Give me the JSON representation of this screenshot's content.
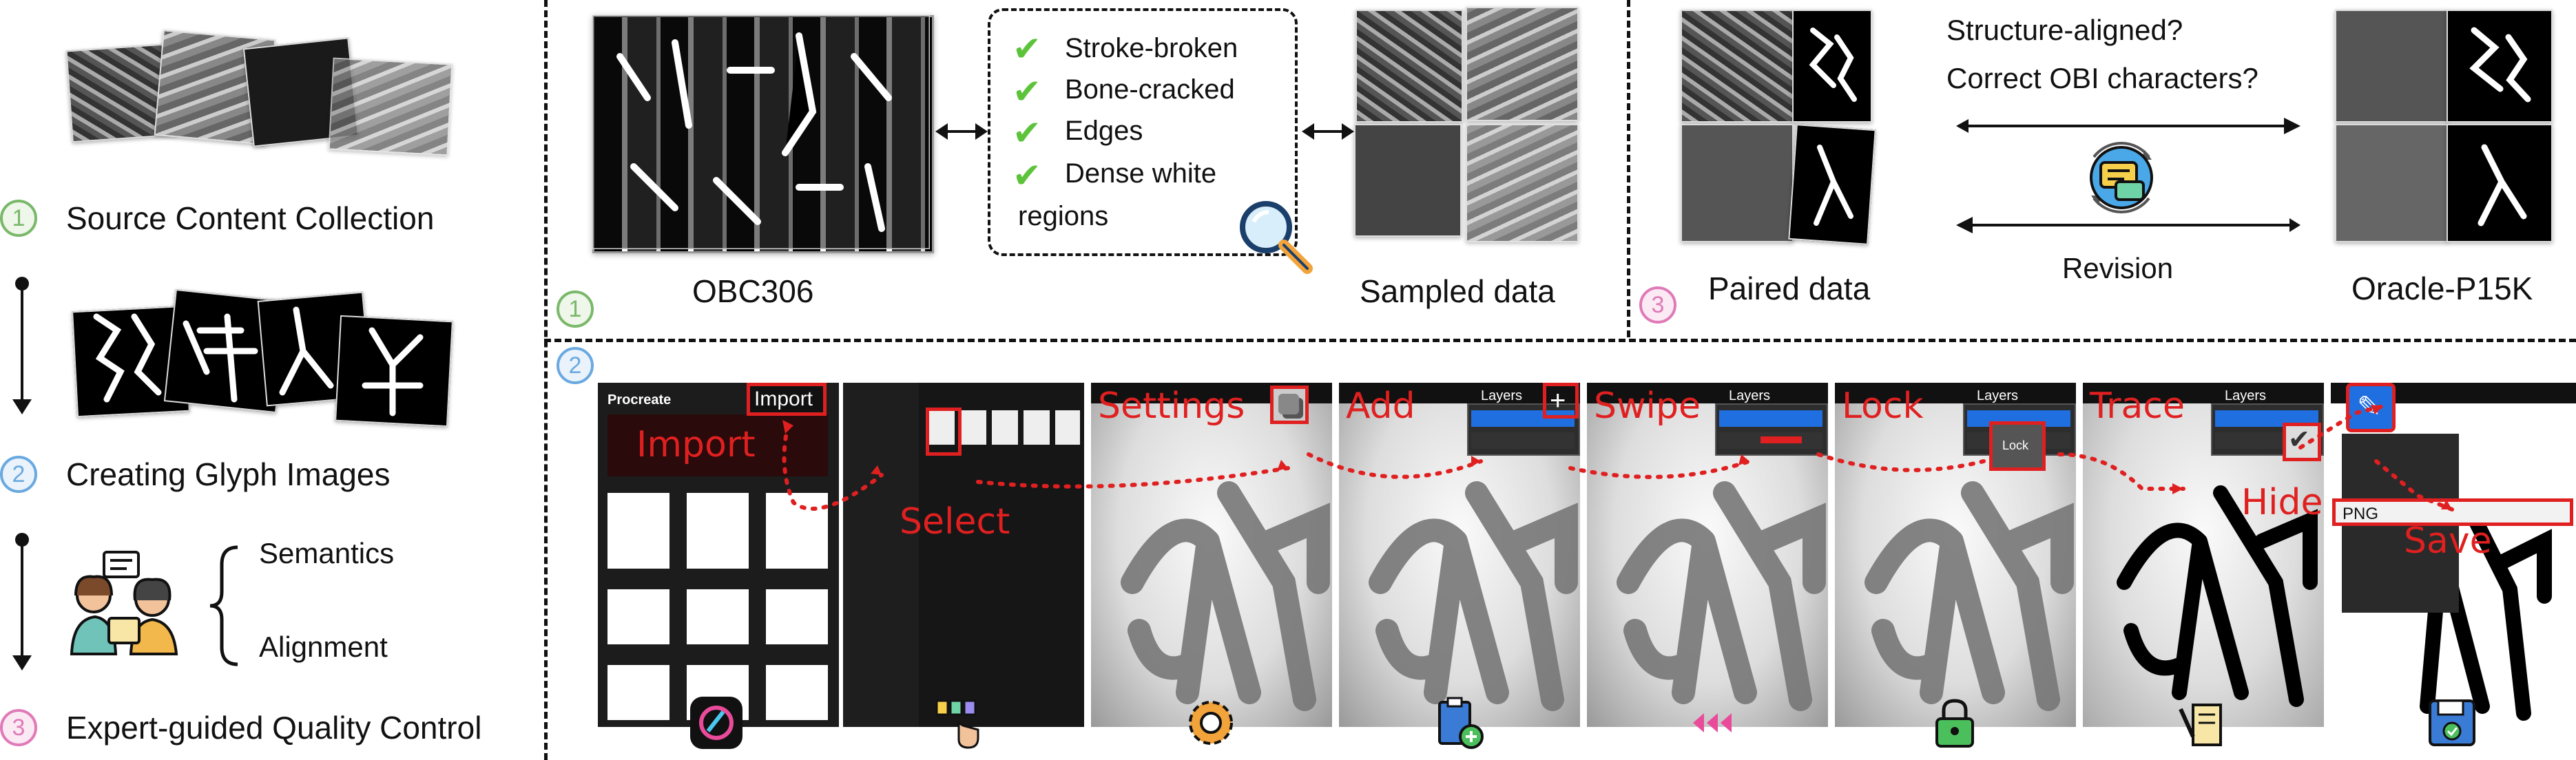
{
  "left_column": {
    "step1": {
      "num": "1",
      "label": "Source Content Collection"
    },
    "step2": {
      "num": "2",
      "label": "Creating Glyph Images"
    },
    "step3": {
      "num": "3",
      "label": "Expert-guided Quality Control"
    },
    "semantics": "Semantics",
    "alignment": "Alignment"
  },
  "stage1": {
    "num": "1",
    "source_caption": "OBC306",
    "criteria": [
      "Stroke-broken",
      "Bone-cracked",
      "Edges",
      "Dense white",
      "regions"
    ],
    "sampled_caption": "Sampled data"
  },
  "stage3": {
    "num": "3",
    "paired_caption": "Paired data",
    "question1": "Structure-aligned?",
    "question2": "Correct OBI characters?",
    "revision": "Revision",
    "result_caption": "Oracle-P15K"
  },
  "stage2": {
    "num": "2",
    "app_name": "Procreate",
    "steps": [
      "Import",
      "Select",
      "Settings",
      "Add",
      "Swipe",
      "Lock",
      "Trace",
      "Hide",
      "Save"
    ],
    "import_button": "Import",
    "layers_title": "Layers",
    "lock_button": "Lock",
    "export_format": "PNG"
  },
  "colors": {
    "accent_red": "#e02020",
    "green_check": "#5cc33a",
    "step1": "#7ab86a",
    "step2": "#6aa9e0",
    "step3": "#e07ab8"
  },
  "icons": [
    "procreate-icon",
    "tap-select-icon",
    "gear-icon",
    "clipboard-add-icon",
    "swipe-left-icon",
    "lock-icon",
    "trace-scroll-icon",
    "floppy-save-icon"
  ]
}
